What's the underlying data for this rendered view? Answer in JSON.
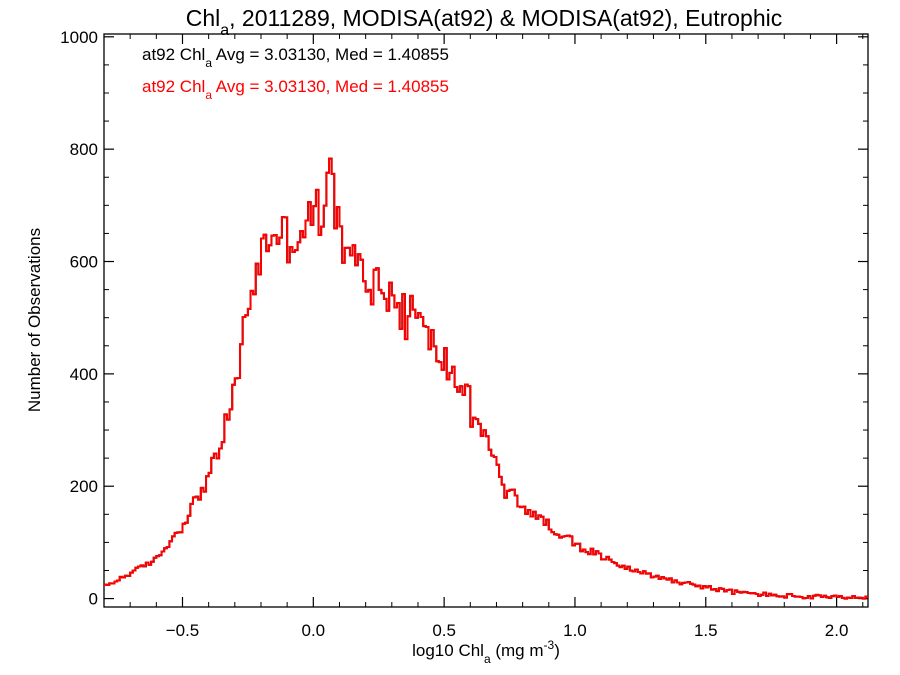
{
  "chart_data": {
    "type": "histogram",
    "title": {
      "pre": "Chl",
      "sub": "a",
      "post": ", 2011289, MODISA(at92) & MODISA(at92), Eutrophic"
    },
    "xlabel": {
      "pre": "log10 Chl",
      "sub": "a",
      "mid": " (mg m",
      "sup": "-3",
      "post": ")"
    },
    "ylabel": "Number of Observations",
    "xlim": [
      -0.8,
      2.12
    ],
    "ylim": [
      -15,
      1005
    ],
    "xticks": [
      -0.5,
      0.0,
      0.5,
      1.0,
      1.5,
      2.0
    ],
    "xtick_labels": [
      "−0.5",
      "0.0",
      "0.5",
      "1.0",
      "1.5",
      "2.0"
    ],
    "yticks": [
      0,
      200,
      400,
      600,
      800,
      1000
    ],
    "ytick_labels": [
      "0",
      "200",
      "400",
      "600",
      "800",
      "1000"
    ],
    "annotations": [
      {
        "pre": "at92 Chl",
        "sub": "a",
        "post": " Avg = 3.03130, Med = 1.40855",
        "color": "#000000"
      },
      {
        "pre": "at92 Chl",
        "sub": "a",
        "post": " Avg = 3.03130, Med = 1.40855",
        "color": "#ff0000"
      }
    ],
    "series": [
      {
        "color": "#000000"
      },
      {
        "color": "#ff0000"
      }
    ],
    "bin_width": 0.01,
    "profile_x": [
      -0.8,
      -0.7,
      -0.6,
      -0.5,
      -0.45,
      -0.4,
      -0.35,
      -0.3,
      -0.28,
      -0.25,
      -0.2,
      -0.15,
      -0.1,
      -0.05,
      0.0,
      0.05,
      0.07,
      0.1,
      0.15,
      0.2,
      0.25,
      0.3,
      0.35,
      0.4,
      0.45,
      0.5,
      0.55,
      0.6,
      0.65,
      0.7,
      0.75,
      0.8,
      0.9,
      1.0,
      1.1,
      1.2,
      1.3,
      1.4,
      1.5,
      1.6,
      1.7,
      1.8,
      1.9,
      2.0,
      2.12
    ],
    "profile_y": [
      20,
      45,
      70,
      130,
      175,
      215,
      280,
      370,
      430,
      520,
      610,
      660,
      640,
      650,
      680,
      700,
      760,
      640,
      600,
      575,
      560,
      540,
      525,
      500,
      455,
      425,
      390,
      350,
      300,
      235,
      190,
      165,
      130,
      100,
      75,
      55,
      40,
      30,
      20,
      12,
      8,
      5,
      3,
      2,
      1
    ]
  }
}
